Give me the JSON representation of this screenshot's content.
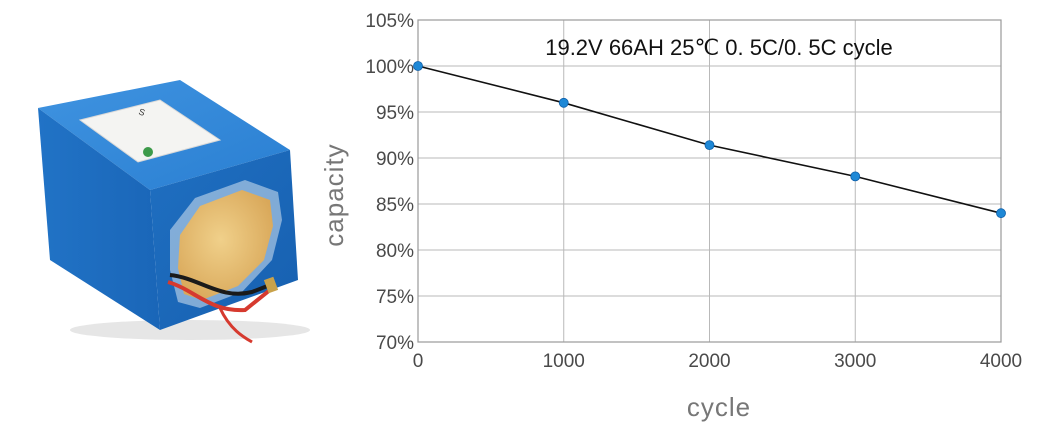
{
  "photo": {
    "label_mark": "S",
    "icon": "battery-pack-image",
    "body_color": "#1f73c9",
    "face_color": "#e8c57a"
  },
  "chart_data": {
    "type": "line",
    "title": "19.2V 66AH 25℃  0. 5C/0. 5C  cycle",
    "xlabel": "cycle",
    "ylabel": "capacity",
    "xlim": [
      0,
      4000
    ],
    "ylim": [
      70,
      105
    ],
    "x_ticks": [
      0,
      1000,
      2000,
      3000,
      4000
    ],
    "x_tick_labels": [
      "0",
      "1000",
      "2000",
      "3000",
      "4000"
    ],
    "y_ticks": [
      70,
      75,
      80,
      85,
      90,
      95,
      100,
      105
    ],
    "y_tick_labels": [
      "70%",
      "75%",
      "80%",
      "85%",
      "90%",
      "95%",
      "100%",
      "105%"
    ],
    "grid": true,
    "series": [
      {
        "x": [
          0,
          1000,
          2000,
          3000,
          4000
        ],
        "values": [
          100,
          96,
          91.4,
          88,
          84
        ]
      }
    ],
    "line_color": "#111111",
    "marker_color": "#1e88d6"
  }
}
